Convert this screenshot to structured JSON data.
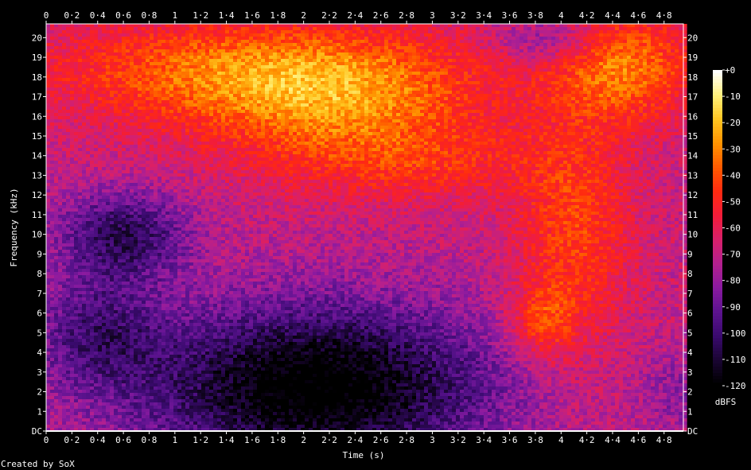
{
  "chart_data": {
    "type": "heatmap",
    "title": "",
    "xlabel": "Time (s)",
    "ylabel": "Frequency (kHz)",
    "xlim": [
      0,
      4.95
    ],
    "ylim": [
      0,
      20.7
    ],
    "x_ticks": [
      "0",
      "0·2",
      "0·4",
      "0·6",
      "0·8",
      "1",
      "1·2",
      "1·4",
      "1·6",
      "1·8",
      "2",
      "2·2",
      "2·4",
      "2·6",
      "2·8",
      "3",
      "3·2",
      "3·4",
      "3·6",
      "3·8",
      "4",
      "4·2",
      "4·4",
      "4·6",
      "4·8"
    ],
    "x_tick_values": [
      0,
      0.2,
      0.4,
      0.6,
      0.8,
      1,
      1.2,
      1.4,
      1.6,
      1.8,
      2,
      2.2,
      2.4,
      2.6,
      2.8,
      3,
      3.2,
      3.4,
      3.6,
      3.8,
      4,
      4.2,
      4.4,
      4.6,
      4.8
    ],
    "y_ticks": [
      "DC",
      "1",
      "2",
      "3",
      "4",
      "5",
      "6",
      "7",
      "8",
      "9",
      "10",
      "11",
      "12",
      "13",
      "14",
      "15",
      "16",
      "17",
      "18",
      "19",
      "20"
    ],
    "y_tick_values": [
      0,
      1,
      2,
      3,
      4,
      5,
      6,
      7,
      8,
      9,
      10,
      11,
      12,
      13,
      14,
      15,
      16,
      17,
      18,
      19,
      20
    ],
    "colorbar": {
      "label": "dBFS",
      "ticks": [
        "+0",
        "-10",
        "-20",
        "-30",
        "-40",
        "-50",
        "-60",
        "-70",
        "-80",
        "-90",
        "-100",
        "-110",
        "-120"
      ],
      "tick_values": [
        0,
        -10,
        -20,
        -30,
        -40,
        -50,
        -60,
        -70,
        -80,
        -90,
        -100,
        -110,
        -120
      ],
      "range": [
        -120,
        0
      ]
    },
    "colormap": [
      "#000000",
      "#1a0533",
      "#3a0a6e",
      "#5c138f",
      "#8a1aa0",
      "#b3208f",
      "#d8206a",
      "#f21c3a",
      "#ff2a10",
      "#ff5a00",
      "#ff9200",
      "#ffc520",
      "#fff07a",
      "#ffffff"
    ],
    "grid": false,
    "legend": "none"
  },
  "footer": {
    "credit": "Created by SoX"
  }
}
